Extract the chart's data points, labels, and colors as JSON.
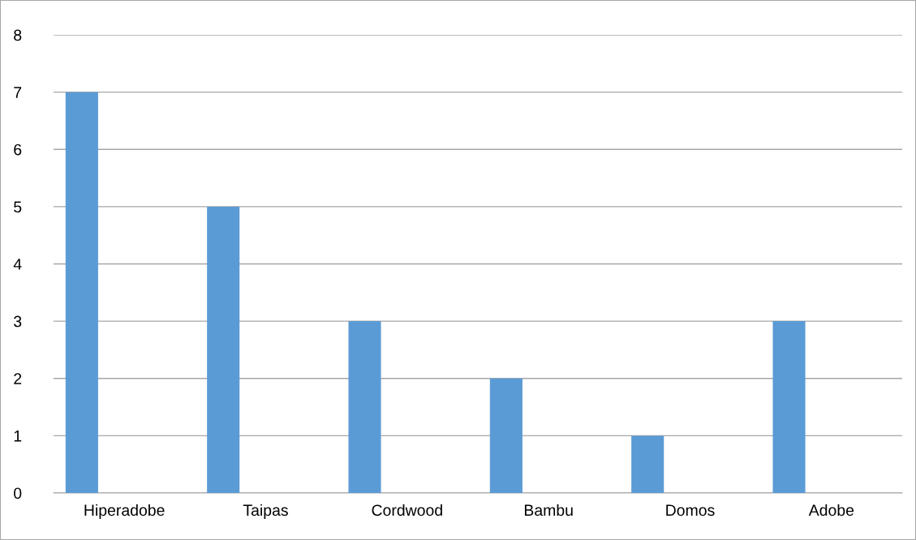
{
  "chart_data": {
    "type": "bar",
    "categories": [
      "Hiperadobe",
      "Taipas",
      "Cordwood",
      "Bambu",
      "Domos",
      "Adobe"
    ],
    "values": [
      7,
      5,
      3,
      2,
      1,
      3
    ],
    "color": "#5b9bd5",
    "ylim": [
      0,
      8
    ],
    "yticks": [
      0,
      1,
      2,
      3,
      4,
      5,
      6,
      7,
      8
    ],
    "grid": "y"
  }
}
